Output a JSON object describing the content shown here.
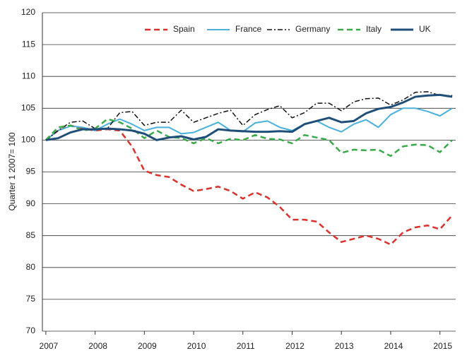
{
  "chart_data": {
    "type": "line",
    "y_label": "Quarter 1 2007= 100",
    "x": [
      2007,
      2007.25,
      2007.5,
      2007.75,
      2008,
      2008.25,
      2008.5,
      2008.75,
      2009,
      2009.25,
      2009.5,
      2009.75,
      2010,
      2010.25,
      2010.5,
      2010.75,
      2011,
      2011.25,
      2011.5,
      2011.75,
      2012,
      2012.25,
      2012.5,
      2012.75,
      2013,
      2013.25,
      2013.5,
      2013.75,
      2014,
      2014.25,
      2014.5,
      2014.75,
      2015,
      2015.25
    ],
    "xlim": [
      2006.93,
      2015.32
    ],
    "xticks": [
      2007,
      2008,
      2009,
      2010,
      2011,
      2012,
      2013,
      2014,
      2015
    ],
    "ylim": [
      70,
      120
    ],
    "yticks": [
      70,
      75,
      80,
      85,
      90,
      95,
      100,
      105,
      110,
      115,
      120
    ],
    "grid": true,
    "legend": "top",
    "series": [
      {
        "name": "Spain",
        "color": "#d9312b",
        "dash": "dashed",
        "values": [
          100,
          101.5,
          102.3,
          101.8,
          101.5,
          101.7,
          101.5,
          99,
          95.2,
          94.5,
          94.2,
          93,
          92,
          92.3,
          92.7,
          92,
          90.8,
          91.8,
          91,
          89.5,
          87.5,
          87.5,
          87.2,
          85.5,
          84,
          84.5,
          85,
          84.5,
          83.6,
          85.5,
          86.3,
          86.6,
          86,
          88.2
        ]
      },
      {
        "name": "France",
        "color": "#4ab0dc",
        "dash": "solid",
        "values": [
          100,
          101.5,
          102.2,
          102,
          101.5,
          102.5,
          103.3,
          102.5,
          101.5,
          102,
          102,
          101,
          101.2,
          102,
          102.8,
          101.5,
          101.3,
          102.7,
          103,
          102,
          101.5,
          102.5,
          103,
          102,
          101.3,
          102.5,
          103.2,
          102,
          104,
          105,
          105,
          104.5,
          103.8,
          105
        ]
      },
      {
        "name": "Germany",
        "color": "#111111",
        "dash": "dashdot",
        "values": [
          100,
          101.5,
          102.8,
          103,
          101.8,
          101.8,
          104.3,
          104.5,
          102.3,
          102.8,
          102.8,
          104.7,
          102.8,
          103.5,
          104.2,
          104.7,
          102.3,
          104,
          104.8,
          105.4,
          103.5,
          104.3,
          105.8,
          105.8,
          104.6,
          106,
          106.5,
          106.6,
          105.5,
          106.3,
          107.5,
          107.6,
          107,
          107
        ]
      },
      {
        "name": "Italy",
        "color": "#3aaa49",
        "dash": "dashed",
        "values": [
          100,
          102,
          102.3,
          101.5,
          101.8,
          103.3,
          102.8,
          101.8,
          100.3,
          101.5,
          100.5,
          100.3,
          99.5,
          100.3,
          99.5,
          100.2,
          100,
          100.8,
          100.2,
          100.1,
          99.5,
          100.8,
          100.4,
          100,
          98,
          98.5,
          98.4,
          98.5,
          97.5,
          99,
          99.3,
          99.2,
          98.1,
          100
        ]
      },
      {
        "name": "UK",
        "color": "#1f4e79",
        "dash": "thick",
        "values": [
          100,
          100.3,
          101.2,
          101.7,
          101.7,
          101.8,
          101.7,
          101.5,
          101,
          100,
          100.4,
          100.6,
          100.1,
          100.5,
          101.7,
          101.5,
          101.4,
          101.3,
          101.3,
          101.4,
          101.3,
          102.5,
          103,
          103.5,
          102.8,
          103,
          104.2,
          104.9,
          105.2,
          105.9,
          106.8,
          107,
          107.1,
          106.8
        ]
      }
    ]
  }
}
